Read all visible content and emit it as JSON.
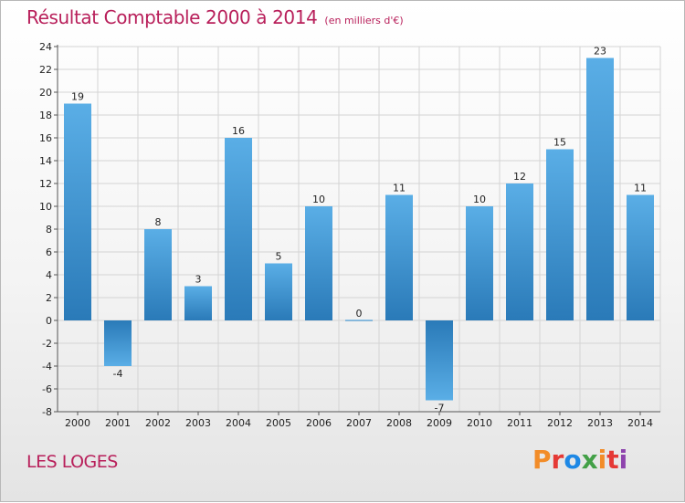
{
  "page": {
    "title": "Résultat Comptable 2000 à 2014",
    "subtitle": "(en milliers d'€)",
    "commune": "LES LOGES",
    "logo_text": "Proxiti"
  },
  "colors": {
    "title": "#b81f5a",
    "bar_light": "#5aaee6",
    "bar_dark": "#2a7ab8",
    "grid": "#d4d4d4",
    "logo": [
      "#f28c28",
      "#e53935",
      "#1e88e5",
      "#43a047",
      "#f28c28",
      "#e53935",
      "#8e44ad"
    ]
  },
  "chart_data": {
    "type": "bar",
    "title": "Résultat Comptable 2000 à 2014",
    "subtitle": "(en milliers d'€)",
    "categories": [
      "2000",
      "2001",
      "2002",
      "2003",
      "2004",
      "2005",
      "2006",
      "2007",
      "2008",
      "2009",
      "2010",
      "2011",
      "2012",
      "2013",
      "2014"
    ],
    "values": [
      19,
      -4,
      8,
      3,
      16,
      5,
      10,
      0,
      11,
      -7,
      10,
      12,
      15,
      23,
      11
    ],
    "ylim": [
      -8,
      24
    ],
    "yticks": [
      -8,
      -6,
      -4,
      -2,
      0,
      2,
      4,
      6,
      8,
      10,
      12,
      14,
      16,
      18,
      20,
      22,
      24
    ],
    "grid": true,
    "xlabel": "",
    "ylabel": ""
  }
}
